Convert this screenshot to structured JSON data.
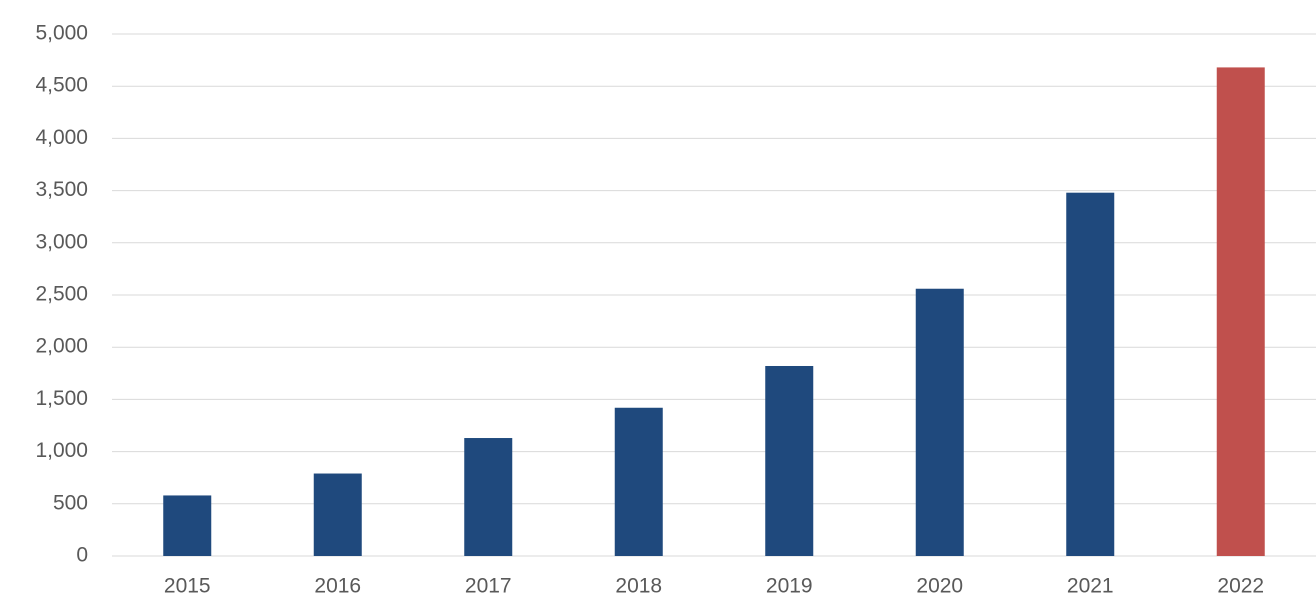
{
  "chart_data": {
    "type": "bar",
    "categories": [
      "2015",
      "2016",
      "2017",
      "2018",
      "2019",
      "2020",
      "2021",
      "2022"
    ],
    "values": [
      580,
      790,
      1130,
      1420,
      1820,
      2560,
      3480,
      4680
    ],
    "colors": [
      "#1f497d",
      "#1f497d",
      "#1f497d",
      "#1f497d",
      "#1f497d",
      "#1f497d",
      "#1f497d",
      "#c0504d"
    ],
    "ylim": [
      0,
      5000
    ],
    "yticks": [
      0,
      500,
      {
        "value": 1000,
        "label": "1,000"
      },
      {
        "value": 1500,
        "label": "1,500"
      },
      {
        "value": 2000,
        "label": "2,000"
      },
      {
        "value": 2500,
        "label": "2,500"
      },
      {
        "value": 3000,
        "label": "3,000"
      },
      {
        "value": 3500,
        "label": "3,500"
      },
      {
        "value": 4000,
        "label": "4,000"
      },
      {
        "value": 4500,
        "label": "4,500"
      },
      {
        "value": 5000,
        "label": "5,000"
      }
    ],
    "grid": true
  }
}
